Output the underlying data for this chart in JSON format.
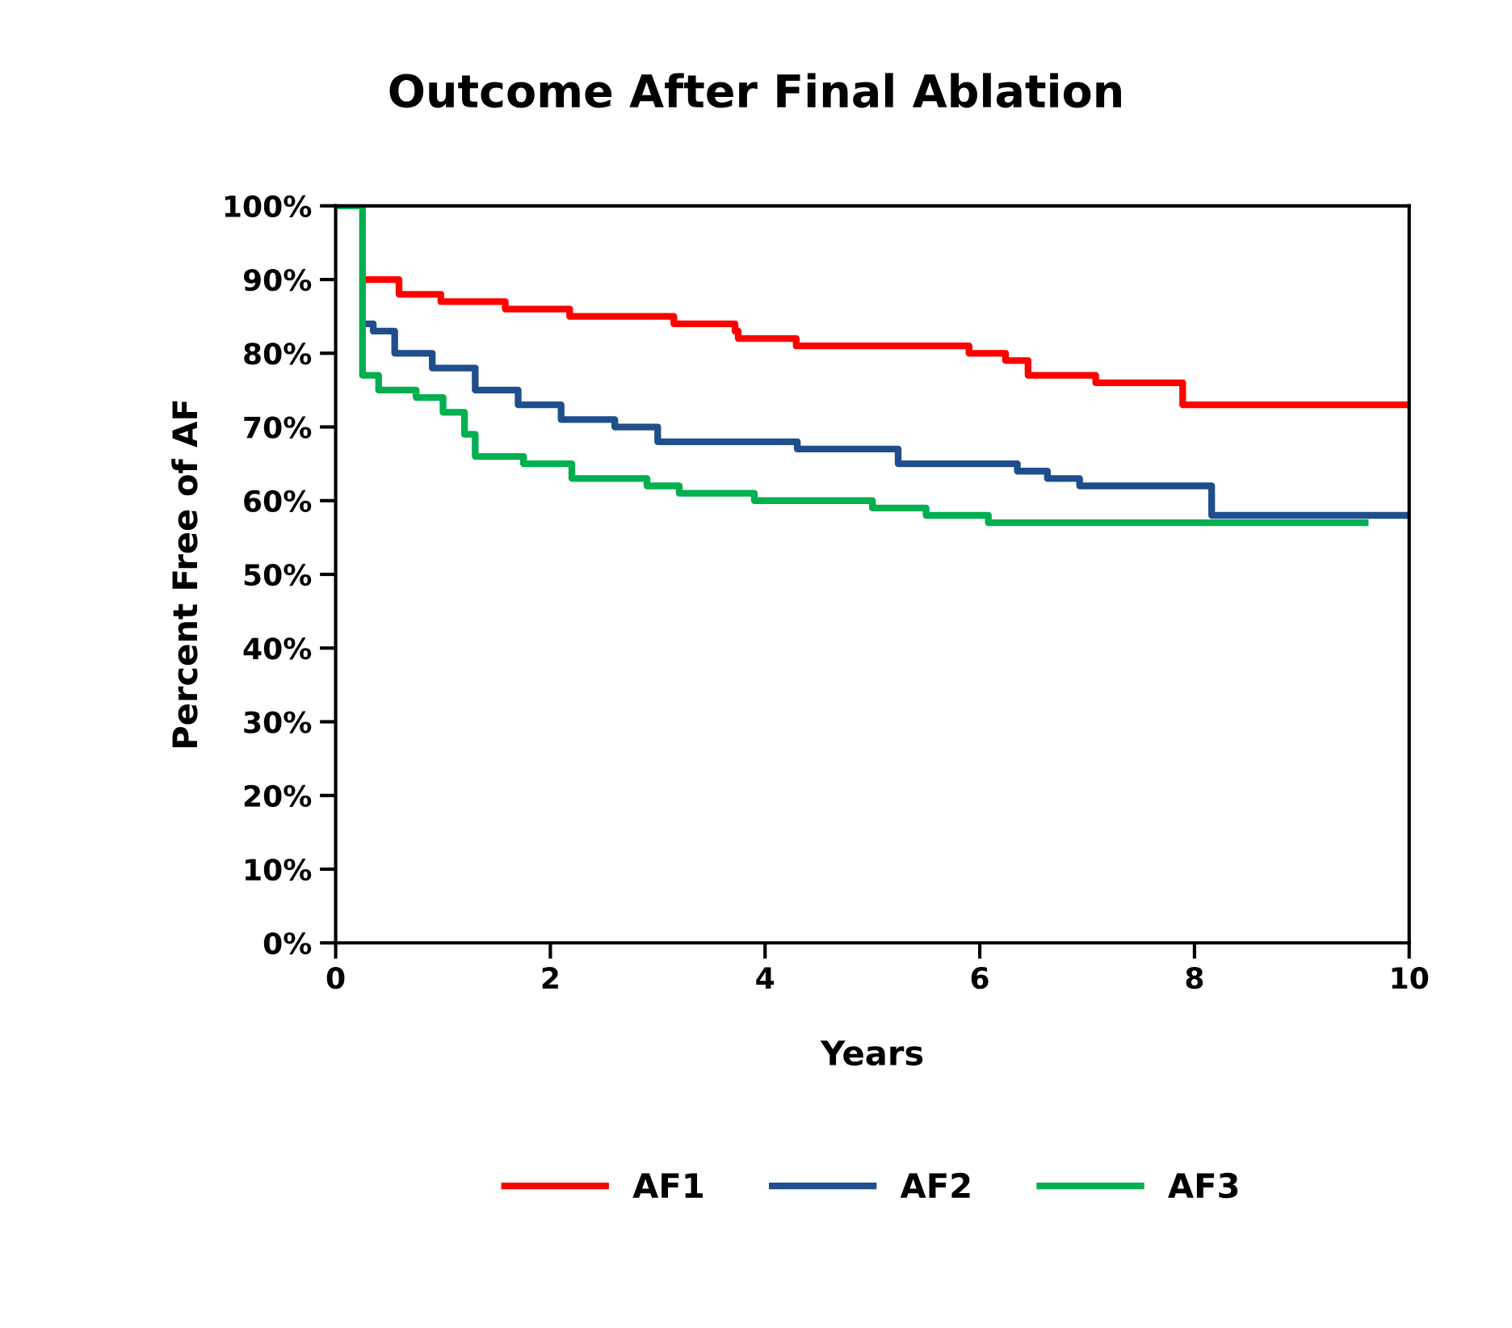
{
  "chart_data": {
    "type": "step",
    "title": "Outcome After Final Ablation",
    "xlabel": "Years",
    "ylabel": "Percent Free of AF",
    "xlim": [
      0,
      10
    ],
    "xticks": [
      0,
      2,
      4,
      6,
      8,
      10
    ],
    "ylim": [
      0,
      100
    ],
    "yticks": [
      {
        "value": 0,
        "label": "0%"
      },
      {
        "value": 10,
        "label": "10%"
      },
      {
        "value": 20,
        "label": "20%"
      },
      {
        "value": 30,
        "label": "30%"
      },
      {
        "value": 40,
        "label": "40%"
      },
      {
        "value": 50,
        "label": "50%"
      },
      {
        "value": 60,
        "label": "60%"
      },
      {
        "value": 70,
        "label": "70%"
      },
      {
        "value": 80,
        "label": "80%"
      },
      {
        "value": 90,
        "label": "90%"
      },
      {
        "value": 100,
        "label": "100%"
      }
    ],
    "grid": false,
    "legend": "bottom",
    "marker": "none",
    "line_style": "solid",
    "series": [
      {
        "name": "AF1",
        "color": "#ff0000",
        "x": [
          0.28,
          0.59,
          0.98,
          1.58,
          1.88,
          2.18,
          3.15,
          3.54,
          3.72,
          3.75,
          4.29,
          5.9,
          6.24,
          6.45,
          7.08,
          7.89,
          10
        ],
        "values": [
          90,
          88,
          87,
          86,
          86,
          85,
          84,
          84,
          83,
          82,
          81,
          80,
          79,
          77,
          76,
          73,
          73
        ]
      },
      {
        "name": "AF2",
        "color": "#1f4e8c",
        "x": [
          0.28,
          0.35,
          0.55,
          0.9,
          1.3,
          1.7,
          2.1,
          2.6,
          3.0,
          3.9,
          4.3,
          5.24,
          5.57,
          6.35,
          6.63,
          6.93,
          8.16,
          10
        ],
        "values": [
          84,
          83,
          80,
          78,
          75,
          73,
          71,
          70,
          68,
          68,
          67,
          65,
          65,
          64,
          63,
          62,
          58,
          58
        ]
      },
      {
        "name": "AF3",
        "color": "#00b050",
        "x": [
          0,
          0.25,
          0.4,
          0.75,
          1.0,
          1.2,
          1.3,
          1.75,
          2.2,
          2.9,
          3.2,
          3.9,
          5.0,
          5.5,
          6.08,
          9.59
        ],
        "values": [
          100,
          77,
          75,
          74,
          72,
          69,
          66,
          65,
          63,
          62,
          61,
          60,
          59,
          58,
          57,
          57
        ]
      }
    ]
  }
}
